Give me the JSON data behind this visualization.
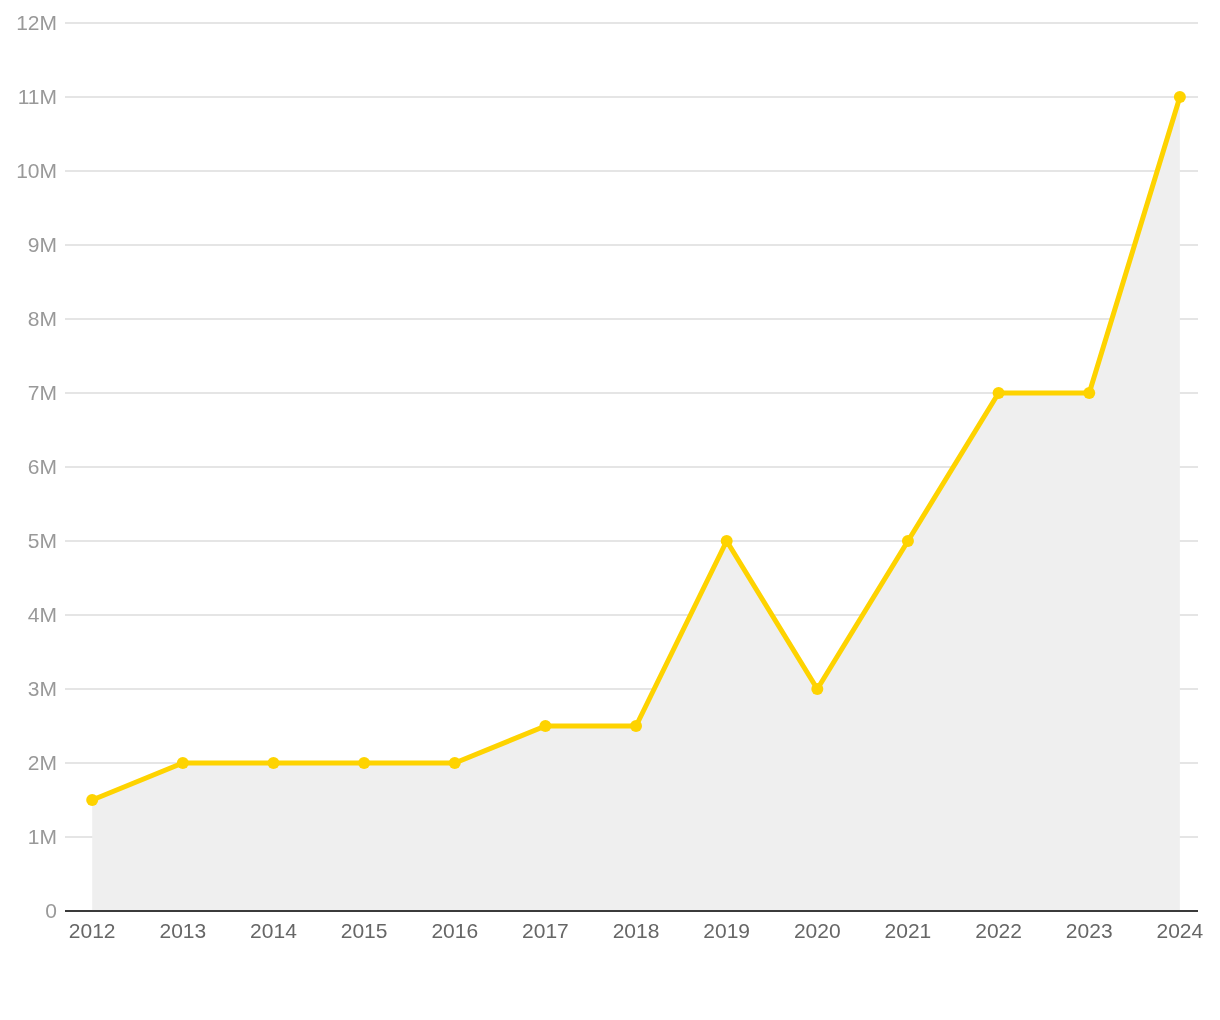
{
  "chart_data": {
    "type": "area",
    "x": [
      2012,
      2013,
      2014,
      2015,
      2016,
      2017,
      2018,
      2019,
      2020,
      2021,
      2022,
      2023,
      2024
    ],
    "series": [
      {
        "color": "#fed300",
        "values": [
          1500000,
          2000000,
          2000000,
          2000000,
          2000000,
          2500000,
          2500000,
          5000000,
          3000000,
          5000000,
          7000000,
          7000000,
          11000000
        ]
      }
    ],
    "xlim": [
      2011.7,
      2024.2
    ],
    "xticks": [
      2012,
      2013,
      2014,
      2015,
      2016,
      2017,
      2018,
      2019,
      2020,
      2021,
      2022,
      2023,
      2024
    ],
    "ylim": [
      0,
      12000000
    ],
    "yticks": [
      0,
      {
        "value": 1000000,
        "label": "1M"
      },
      {
        "value": 2000000,
        "label": "2M"
      },
      {
        "value": 3000000,
        "label": "3M"
      },
      {
        "value": 4000000,
        "label": "4M"
      },
      {
        "value": 5000000,
        "label": "5M"
      },
      {
        "value": 6000000,
        "label": "6M"
      },
      {
        "value": 7000000,
        "label": "7M"
      },
      {
        "value": 8000000,
        "label": "8M"
      },
      {
        "value": 9000000,
        "label": "9M"
      },
      {
        "value": 10000000,
        "label": "10M"
      },
      {
        "value": 11000000,
        "label": "11M"
      },
      {
        "value": 12000000,
        "label": "12M"
      }
    ],
    "grid": "y",
    "marker": "circle",
    "line_style": "solid",
    "legend": false
  }
}
